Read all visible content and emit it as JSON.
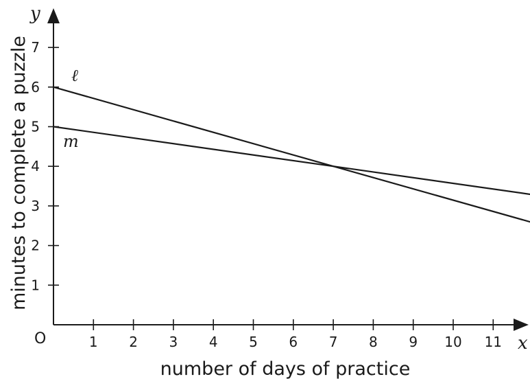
{
  "chart_data": {
    "type": "line",
    "xlabel": "number of days of practice",
    "ylabel": "minutes to complete a puzzle",
    "x_axis_var": "x",
    "y_axis_var": "y",
    "origin_label": "O",
    "xlim": [
      0,
      11.95
    ],
    "ylim": [
      0,
      7.8
    ],
    "x_ticks": [
      1,
      2,
      3,
      4,
      5,
      6,
      7,
      8,
      9,
      10,
      11
    ],
    "y_ticks": [
      1,
      2,
      3,
      4,
      5,
      6,
      7
    ],
    "grid": false,
    "series": [
      {
        "name": "ℓ",
        "x": [
          0,
          7,
          11.95
        ],
        "y": [
          6,
          4,
          2.59
        ],
        "color": "#1a1a1a"
      },
      {
        "name": "m",
        "x": [
          0,
          7,
          11.95
        ],
        "y": [
          5,
          4,
          3.29
        ],
        "color": "#1a1a1a"
      }
    ]
  }
}
